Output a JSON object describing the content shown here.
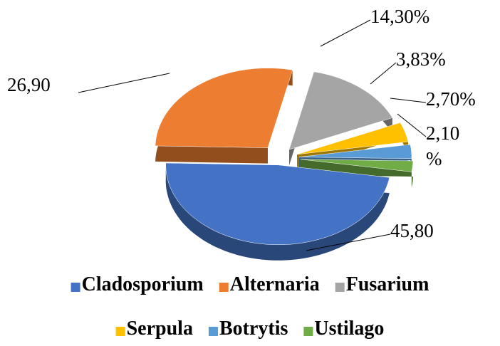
{
  "chart_data": {
    "type": "pie",
    "categories": [
      "Cladosporium",
      "Alternaria",
      "Fusarium",
      "Serpula",
      "Botrytis",
      "Ustilago"
    ],
    "values": [
      45.8,
      26.9,
      14.3,
      3.83,
      2.7,
      2.1
    ],
    "value_labels": [
      "45,80",
      "26,90",
      "14,30%",
      "3,83%",
      "2,70%",
      "2,10 %"
    ],
    "colors": [
      "#4472c4",
      "#ed7d31",
      "#a5a5a5",
      "#ffc000",
      "#5b9bd5",
      "#70ad47"
    ],
    "legend": "bottom"
  }
}
